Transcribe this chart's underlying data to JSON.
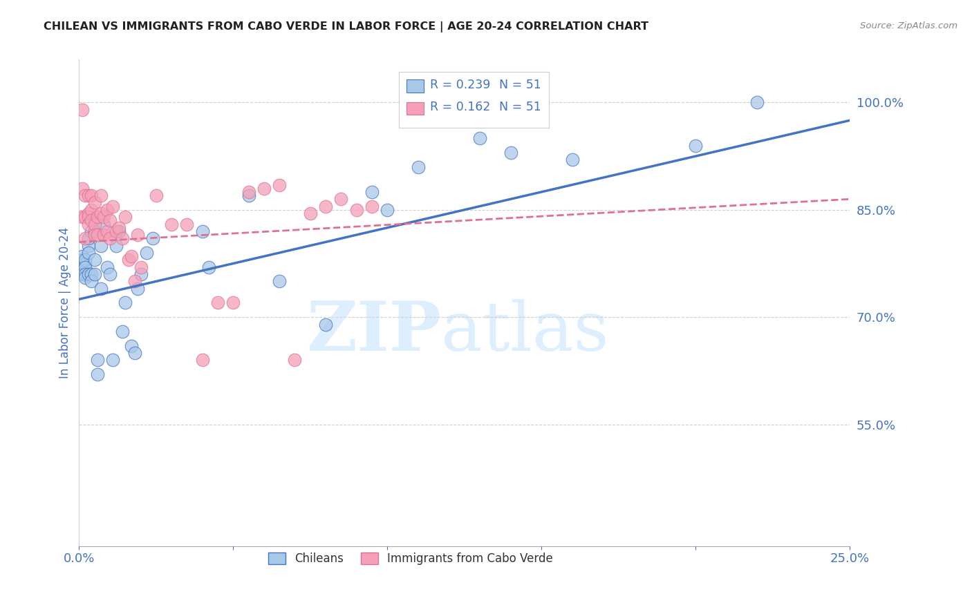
{
  "title": "CHILEAN VS IMMIGRANTS FROM CABO VERDE IN LABOR FORCE | AGE 20-24 CORRELATION CHART",
  "source": "Source: ZipAtlas.com",
  "ylabel": "In Labor Force | Age 20-24",
  "legend_labels": [
    "Chileans",
    "Immigrants from Cabo Verde"
  ],
  "R_chileans": 0.239,
  "R_caboverde": 0.162,
  "N_chileans": 51,
  "N_caboverde": 51,
  "color_chileans": "#a8c8e8",
  "color_caboverde": "#f4a0b8",
  "line_color_chileans": "#4472c4",
  "line_color_caboverde": "#e07090",
  "title_color": "#222222",
  "axis_label_color": "#4472c4",
  "tick_color": "#4472c4",
  "grid_color": "#d0d0d0",
  "watermark_zip": "ZIP",
  "watermark_atlas": "atlas",
  "watermark_color": "#ddeeff",
  "xmin": 0.0,
  "xmax": 0.25,
  "ymin": 0.38,
  "ymax": 1.06,
  "yticks": [
    0.55,
    0.7,
    0.85,
    1.0
  ],
  "ytick_labels": [
    "55.0%",
    "70.0%",
    "85.0%",
    "100.0%"
  ],
  "xticks": [
    0.0,
    0.05,
    0.1,
    0.15,
    0.2,
    0.25
  ],
  "xtick_labels": [
    "0.0%",
    "",
    "",
    "",
    "",
    "25.0%"
  ],
  "trend_blue_x0": 0.0,
  "trend_blue_y0": 0.725,
  "trend_blue_x1": 0.25,
  "trend_blue_y1": 0.975,
  "trend_pink_x0": 0.0,
  "trend_pink_y0": 0.805,
  "trend_pink_x1": 0.25,
  "trend_pink_y1": 0.865,
  "chileans_x": [
    0.001,
    0.001,
    0.001,
    0.001,
    0.001,
    0.002,
    0.002,
    0.002,
    0.002,
    0.002,
    0.003,
    0.003,
    0.003,
    0.003,
    0.004,
    0.004,
    0.004,
    0.005,
    0.005,
    0.005,
    0.006,
    0.006,
    0.007,
    0.007,
    0.008,
    0.009,
    0.01,
    0.011,
    0.012,
    0.013,
    0.014,
    0.015,
    0.017,
    0.018,
    0.019,
    0.02,
    0.022,
    0.024,
    0.04,
    0.042,
    0.055,
    0.065,
    0.08,
    0.095,
    0.1,
    0.11,
    0.13,
    0.14,
    0.16,
    0.2,
    0.22
  ],
  "chileans_y": [
    0.775,
    0.78,
    0.77,
    0.76,
    0.785,
    0.775,
    0.78,
    0.77,
    0.76,
    0.755,
    0.8,
    0.79,
    0.81,
    0.76,
    0.82,
    0.76,
    0.75,
    0.82,
    0.78,
    0.76,
    0.64,
    0.62,
    0.8,
    0.74,
    0.83,
    0.77,
    0.76,
    0.64,
    0.8,
    0.82,
    0.68,
    0.72,
    0.66,
    0.65,
    0.74,
    0.76,
    0.79,
    0.81,
    0.82,
    0.77,
    0.87,
    0.75,
    0.69,
    0.875,
    0.85,
    0.91,
    0.95,
    0.93,
    0.92,
    0.94,
    1.0
  ],
  "caboverde_x": [
    0.001,
    0.001,
    0.001,
    0.002,
    0.002,
    0.002,
    0.003,
    0.003,
    0.003,
    0.003,
    0.004,
    0.004,
    0.004,
    0.005,
    0.005,
    0.005,
    0.006,
    0.006,
    0.007,
    0.007,
    0.008,
    0.008,
    0.009,
    0.009,
    0.01,
    0.01,
    0.011,
    0.012,
    0.013,
    0.014,
    0.015,
    0.016,
    0.017,
    0.018,
    0.019,
    0.02,
    0.025,
    0.03,
    0.035,
    0.04,
    0.045,
    0.05,
    0.055,
    0.06,
    0.065,
    0.07,
    0.075,
    0.08,
    0.085,
    0.09,
    0.095
  ],
  "caboverde_y": [
    0.99,
    0.84,
    0.88,
    0.87,
    0.84,
    0.81,
    0.87,
    0.845,
    0.84,
    0.83,
    0.87,
    0.85,
    0.835,
    0.86,
    0.83,
    0.815,
    0.84,
    0.815,
    0.87,
    0.845,
    0.84,
    0.815,
    0.85,
    0.82,
    0.835,
    0.81,
    0.855,
    0.82,
    0.825,
    0.81,
    0.84,
    0.78,
    0.785,
    0.75,
    0.815,
    0.77,
    0.87,
    0.83,
    0.83,
    0.64,
    0.72,
    0.72,
    0.875,
    0.88,
    0.885,
    0.64,
    0.845,
    0.855,
    0.865,
    0.85,
    0.855
  ]
}
